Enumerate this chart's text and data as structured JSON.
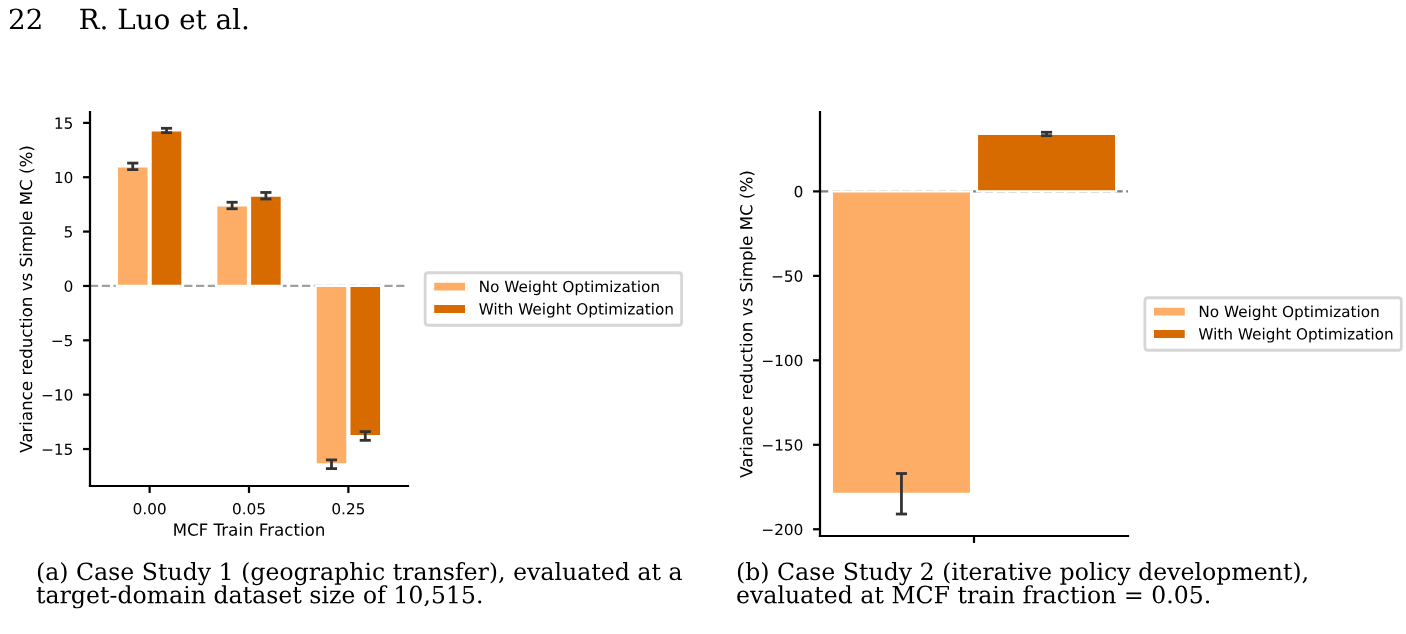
{
  "chart_data": [
    {
      "type": "bar",
      "annotations": [
        "22    R. Luo et al.",
        "(a) Case Study 1 (geographic transfer), evaluated at a target-domain dataset size of 10,515."
      ],
      "xlabel": "MCF Train Fraction",
      "ylabel": "Variance reduction vs Simple MC (%)",
      "categories": [
        "0.00",
        "0.05",
        "0.25"
      ],
      "series": [
        {
          "name": "No Weight Optimization",
          "color": "#fdad66",
          "values": [
            11.0,
            7.4,
            -16.4
          ],
          "errors": [
            0.3,
            0.3,
            0.4
          ]
        },
        {
          "name": "With Weight Optimization",
          "color": "#d76b00",
          "values": [
            14.3,
            8.3,
            -13.8
          ],
          "errors": [
            0.2,
            0.3,
            0.4
          ]
        }
      ],
      "ylim": [
        -18.4,
        16
      ],
      "yticks": [
        -15,
        -10,
        -5,
        0,
        5,
        10,
        15
      ],
      "ref_lines": [
        {
          "axis": "y",
          "value": 0,
          "color": "#a0a0a0",
          "line_style": "dashed"
        }
      ],
      "legend": "right",
      "grid": false
    },
    {
      "type": "bar",
      "annotations": [
        "(b) Case Study 2 (iterative policy development), evaluated at MCF train fraction = 0.05."
      ],
      "ylabel": "Variance reduction vs Simple MC (%)",
      "categories": [
        null
      ],
      "series": [
        {
          "name": "No Weight Optimization",
          "color": "#fdad66",
          "values": [
            -179
          ],
          "errors": [
            12
          ]
        },
        {
          "name": "With Weight Optimization",
          "color": "#d76b00",
          "values": [
            34
          ],
          "errors": [
            1
          ]
        }
      ],
      "ylim": [
        -204,
        47
      ],
      "yticks": [
        -200,
        -150,
        -100,
        -50,
        0
      ],
      "ref_lines": [
        {
          "axis": "y",
          "value": 0,
          "color": "#808080",
          "line_style": "dashed"
        }
      ],
      "legend": "right",
      "grid": false
    }
  ]
}
